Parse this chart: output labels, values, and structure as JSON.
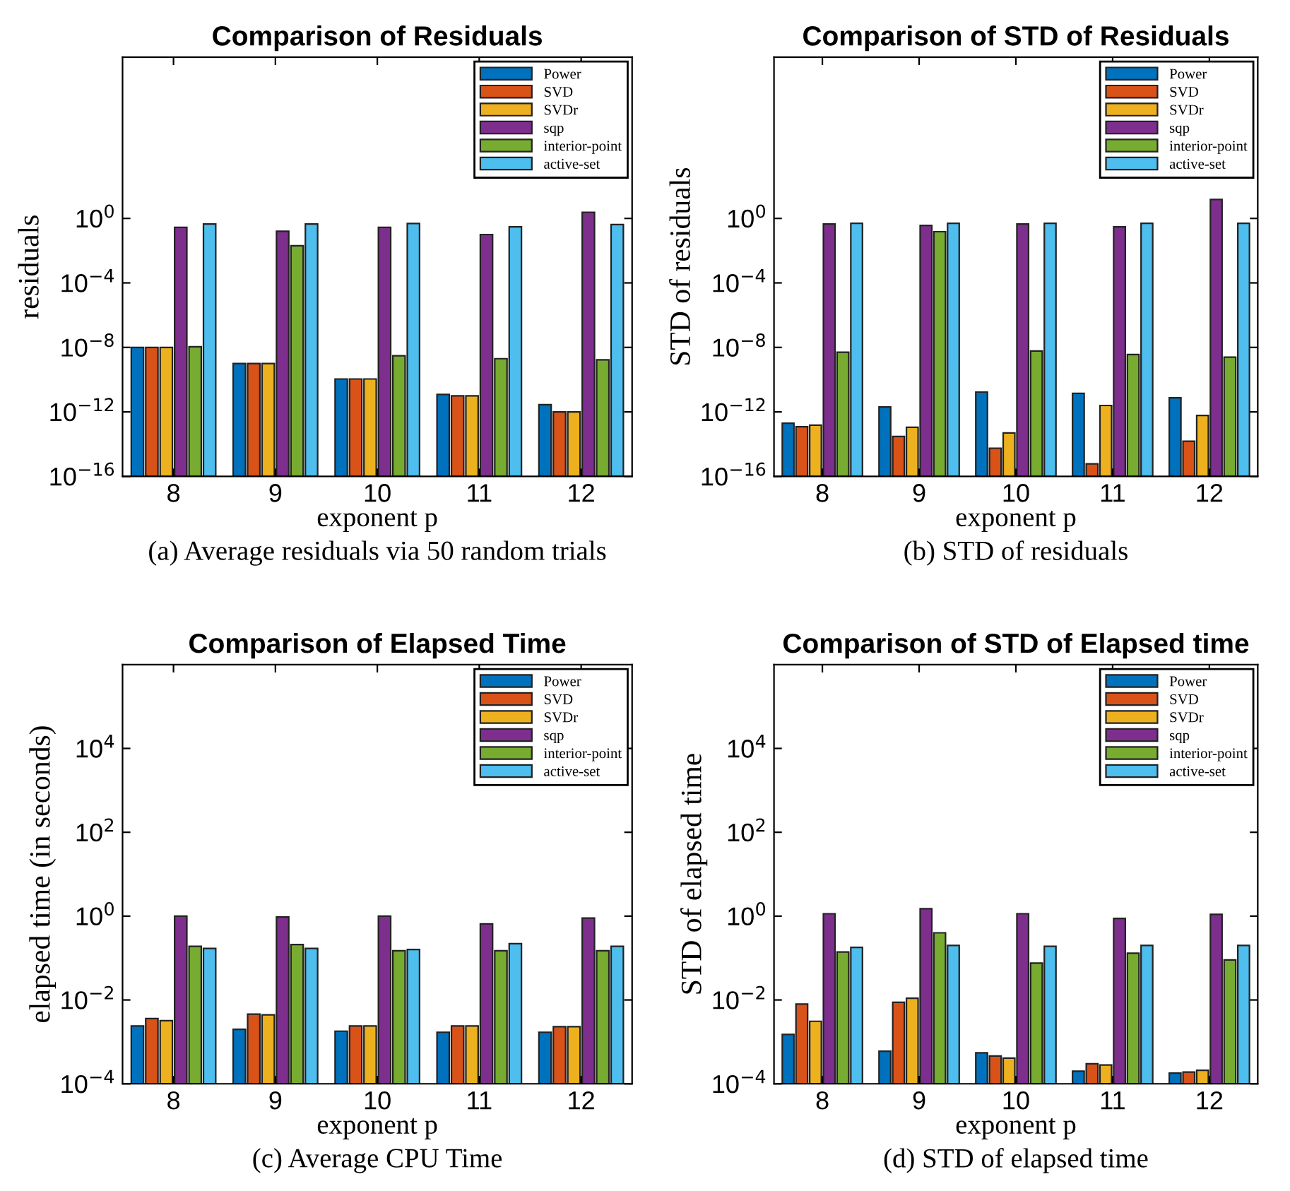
{
  "chart_data": [
    {
      "type": "bar",
      "title": "Comparison of Residuals",
      "xlabel": "exponent p",
      "ylabel": "residuals",
      "categories": [
        "8",
        "9",
        "10",
        "11",
        "12"
      ],
      "log": true,
      "ylim": [
        1e-16,
        10000000000.0
      ],
      "yticks": [
        {
          "value": 1e-16,
          "label": "10$^{−16}$"
        },
        {
          "value": 1e-12,
          "label": "10$^{−12}$"
        },
        {
          "value": 1e-08,
          "label": "10$^{−8}$"
        },
        {
          "value": 0.0001,
          "label": "10$^{−4}$"
        },
        {
          "value": 1,
          "label": "10$^{0}$"
        }
      ],
      "legend": "top right",
      "grid": false,
      "annotations": [
        "(a) Average residuals via 50 random trials"
      ],
      "series": [
        {
          "name": "Power",
          "color": "#0072bd",
          "values": [
            1e-08,
            1e-09,
            1.1e-10,
            1.2e-11,
            2.8e-12
          ]
        },
        {
          "name": "SVD",
          "color": "#d95319",
          "values": [
            1e-08,
            1e-09,
            1.1e-10,
            1e-11,
            1e-12
          ]
        },
        {
          "name": "SVDr",
          "color": "#edb120",
          "values": [
            1e-08,
            1e-09,
            1.1e-10,
            1e-11,
            1e-12
          ]
        },
        {
          "name": "sqp",
          "color": "#7e2f8e",
          "values": [
            0.28,
            0.16,
            0.28,
            0.1,
            2.4
          ]
        },
        {
          "name": "interior-point",
          "color": "#77ac30",
          "values": [
            1.1e-08,
            0.02,
            3e-09,
            2e-09,
            1.7e-09
          ]
        },
        {
          "name": "active-set",
          "color": "#4dbeee",
          "values": [
            0.45,
            0.45,
            0.48,
            0.3,
            0.42
          ]
        }
      ]
    },
    {
      "type": "bar",
      "title": "Comparison of STD of Residuals",
      "xlabel": "exponent p",
      "ylabel": "STD of residuals",
      "categories": [
        "8",
        "9",
        "10",
        "11",
        "12"
      ],
      "log": true,
      "ylim": [
        1e-16,
        10000000000.0
      ],
      "yticks": [
        {
          "value": 1e-16,
          "label": "10$^{−16}$"
        },
        {
          "value": 1e-12,
          "label": "10$^{−12}$"
        },
        {
          "value": 1e-08,
          "label": "10$^{−8}$"
        },
        {
          "value": 0.0001,
          "label": "10$^{−4}$"
        },
        {
          "value": 1,
          "label": "10$^{0}$"
        }
      ],
      "legend": "top right",
      "grid": false,
      "annotations": [
        "(b) STD of residuals"
      ],
      "series": [
        {
          "name": "Power",
          "color": "#0072bd",
          "values": [
            2e-13,
            2e-12,
            1.7e-11,
            1.4e-11,
            7.5e-12
          ]
        },
        {
          "name": "SVD",
          "color": "#d95319",
          "values": [
            1.2e-13,
            3e-14,
            5.6e-15,
            6e-16,
            1.5e-14
          ]
        },
        {
          "name": "SVDr",
          "color": "#edb120",
          "values": [
            1.5e-13,
            1.1e-13,
            5e-14,
            2.5e-12,
            6e-13
          ]
        },
        {
          "name": "sqp",
          "color": "#7e2f8e",
          "values": [
            0.45,
            0.37,
            0.45,
            0.3,
            15
          ]
        },
        {
          "name": "interior-point",
          "color": "#77ac30",
          "values": [
            5e-09,
            0.15,
            6e-09,
            3.6e-09,
            2.5e-09
          ]
        },
        {
          "name": "active-set",
          "color": "#4dbeee",
          "values": [
            0.5,
            0.5,
            0.5,
            0.5,
            0.5
          ]
        }
      ]
    },
    {
      "type": "bar",
      "title": "Comparison of Elapsed Time",
      "xlabel": "exponent p",
      "ylabel": "elapsed time (in seconds)",
      "categories": [
        "8",
        "9",
        "10",
        "11",
        "12"
      ],
      "log": true,
      "ylim": [
        0.0001,
        1000000.0
      ],
      "yticks": [
        {
          "value": 0.0001,
          "label": "10$^{−4}$"
        },
        {
          "value": 0.01,
          "label": "10$^{−2}$"
        },
        {
          "value": 1,
          "label": "10$^{0}$"
        },
        {
          "value": 100,
          "label": "10$^{2}$"
        },
        {
          "value": 10000,
          "label": "10$^{4}$"
        }
      ],
      "legend": "top right",
      "grid": false,
      "annotations": [
        "(c) Average CPU Time"
      ],
      "series": [
        {
          "name": "Power",
          "color": "#0072bd",
          "values": [
            0.0024,
            0.002,
            0.0018,
            0.0017,
            0.0017
          ]
        },
        {
          "name": "SVD",
          "color": "#d95319",
          "values": [
            0.0036,
            0.0046,
            0.0024,
            0.0024,
            0.0023
          ]
        },
        {
          "name": "SVDr",
          "color": "#edb120",
          "values": [
            0.0032,
            0.0044,
            0.0024,
            0.0024,
            0.0023
          ]
        },
        {
          "name": "sqp",
          "color": "#7e2f8e",
          "values": [
            1.0,
            0.95,
            1.0,
            0.65,
            0.9
          ]
        },
        {
          "name": "interior-point",
          "color": "#77ac30",
          "values": [
            0.19,
            0.21,
            0.15,
            0.15,
            0.15
          ]
        },
        {
          "name": "active-set",
          "color": "#4dbeee",
          "values": [
            0.17,
            0.17,
            0.16,
            0.22,
            0.19
          ]
        }
      ]
    },
    {
      "type": "bar",
      "title": "Comparison of STD of Elapsed time",
      "xlabel": "exponent p",
      "ylabel": "STD of elapsed time",
      "categories": [
        "8",
        "9",
        "10",
        "11",
        "12"
      ],
      "log": true,
      "ylim": [
        0.0001,
        1000000.0
      ],
      "yticks": [
        {
          "value": 0.0001,
          "label": "10$^{−4}$"
        },
        {
          "value": 0.01,
          "label": "10$^{−2}$"
        },
        {
          "value": 1,
          "label": "10$^{0}$"
        },
        {
          "value": 100,
          "label": "10$^{2}$"
        },
        {
          "value": 10000,
          "label": "10$^{4}$"
        }
      ],
      "legend": "top right",
      "grid": false,
      "annotations": [
        "(d) STD of elapsed time"
      ],
      "series": [
        {
          "name": "Power",
          "color": "#0072bd",
          "values": [
            0.0015,
            0.0006,
            0.00055,
            0.0002,
            0.00018
          ]
        },
        {
          "name": "SVD",
          "color": "#d95319",
          "values": [
            0.008,
            0.0088,
            0.00046,
            0.0003,
            0.00019
          ]
        },
        {
          "name": "SVDr",
          "color": "#edb120",
          "values": [
            0.0031,
            0.011,
            0.00041,
            0.00028,
            0.00021
          ]
        },
        {
          "name": "sqp",
          "color": "#7e2f8e",
          "values": [
            1.14,
            1.5,
            1.14,
            0.88,
            1.1
          ]
        },
        {
          "name": "interior-point",
          "color": "#77ac30",
          "values": [
            0.14,
            0.4,
            0.076,
            0.13,
            0.09
          ]
        },
        {
          "name": "active-set",
          "color": "#4dbeee",
          "values": [
            0.18,
            0.2,
            0.19,
            0.2,
            0.2
          ]
        }
      ]
    }
  ]
}
